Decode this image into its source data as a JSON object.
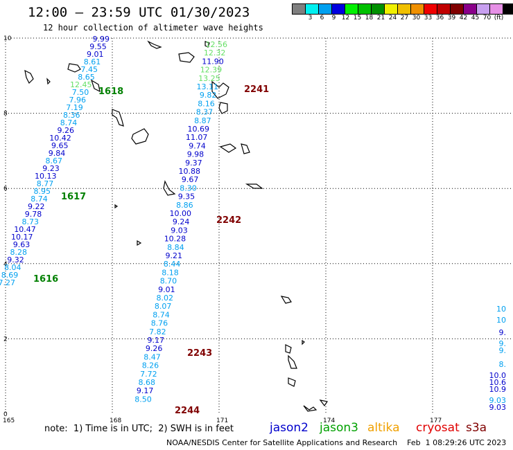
{
  "header": {
    "title": "12:00 — 23:59 UTC 01/30/2023",
    "subtitle": "12 hour collection of altimeter wave heights"
  },
  "legend": {
    "unit": "(ft)",
    "colors": [
      "#7f7f7f",
      "#00f0f0",
      "#00a0f0",
      "#0000e0",
      "#00f000",
      "#00c000",
      "#009000",
      "#f0f000",
      "#f0c000",
      "#f09000",
      "#f00000",
      "#c00000",
      "#800000",
      "#8a008a",
      "#c8a0f0",
      "#e690e6",
      "#000000"
    ],
    "labels": [
      "3",
      "6",
      "9",
      "12",
      "15",
      "18",
      "21",
      "24",
      "27",
      "30",
      "33",
      "36",
      "39",
      "42",
      "45",
      "70"
    ]
  },
  "axes": {
    "x_ticks": [
      "165",
      "168",
      "171",
      "174",
      "177"
    ],
    "y_ticks": [
      "0",
      "2",
      "4",
      "6",
      "8",
      "10"
    ]
  },
  "tracks": [
    {
      "values": [
        {
          "v": "9.99",
          "c": "#0000cc"
        },
        {
          "v": "9.55",
          "c": "#0000cc"
        },
        {
          "v": "9.01",
          "c": "#0000cc"
        },
        {
          "v": "8.61",
          "c": "#00a0f0"
        },
        {
          "v": "7.45",
          "c": "#00a0f0"
        },
        {
          "v": "8.65",
          "c": "#00a0f0"
        },
        {
          "v": "12.45",
          "c": "#66e066"
        },
        {
          "v": "7.50",
          "c": "#00a0f0"
        },
        {
          "v": "7.96",
          "c": "#00a0f0"
        },
        {
          "v": "7.19",
          "c": "#00a0f0"
        },
        {
          "v": "8.36",
          "c": "#00a0f0"
        },
        {
          "v": "8.74",
          "c": "#00a0f0"
        },
        {
          "v": "9.26",
          "c": "#0000cc"
        },
        {
          "v": "10.42",
          "c": "#0000cc"
        },
        {
          "v": "9.65",
          "c": "#0000cc"
        },
        {
          "v": "9.84",
          "c": "#0000cc"
        },
        {
          "v": "8.67",
          "c": "#00a0f0"
        },
        {
          "v": "9.23",
          "c": "#0000cc"
        },
        {
          "v": "10.13",
          "c": "#0000cc"
        },
        {
          "v": "8.77",
          "c": "#00a0f0"
        },
        {
          "v": "8.95",
          "c": "#00a0f0"
        },
        {
          "v": "8.74",
          "c": "#00a0f0"
        },
        {
          "v": "9.22",
          "c": "#0000cc"
        },
        {
          "v": "9.78",
          "c": "#0000cc"
        },
        {
          "v": "8.73",
          "c": "#00a0f0"
        },
        {
          "v": "10.47",
          "c": "#0000cc"
        },
        {
          "v": "10.17",
          "c": "#0000cc"
        },
        {
          "v": "9.63",
          "c": "#0000cc"
        },
        {
          "v": "8.28",
          "c": "#00a0f0"
        },
        {
          "v": "9.32",
          "c": "#0000cc"
        },
        {
          "v": "8.04",
          "c": "#00a0f0"
        },
        {
          "v": "8.69",
          "c": "#00a0f0"
        },
        {
          "v": "7.27",
          "c": "#00a0f0"
        }
      ],
      "times": [
        {
          "t": "1618",
          "c": "#008000"
        },
        {
          "t": "1617",
          "c": "#008000"
        },
        {
          "t": "1616",
          "c": "#008000"
        }
      ]
    },
    {
      "values": [
        {
          "v": "12.56",
          "c": "#66e066"
        },
        {
          "v": "12.32",
          "c": "#66e066"
        },
        {
          "v": "11.90",
          "c": "#0000cc"
        },
        {
          "v": "12.39",
          "c": "#66e066"
        },
        {
          "v": "13.25",
          "c": "#66e066"
        },
        {
          "v": "13.11",
          "c": "#00a0f0"
        },
        {
          "v": "9.82",
          "c": "#00a0f0"
        },
        {
          "v": "8.16",
          "c": "#00a0f0"
        },
        {
          "v": "8.37",
          "c": "#00a0f0"
        },
        {
          "v": "8.87",
          "c": "#00a0f0"
        },
        {
          "v": "10.69",
          "c": "#0000cc"
        },
        {
          "v": "11.07",
          "c": "#0000cc"
        },
        {
          "v": "9.74",
          "c": "#0000cc"
        },
        {
          "v": "9.98",
          "c": "#0000cc"
        },
        {
          "v": "9.37",
          "c": "#0000cc"
        },
        {
          "v": "10.88",
          "c": "#0000cc"
        },
        {
          "v": "9.67",
          "c": "#0000cc"
        },
        {
          "v": "8.30",
          "c": "#00a0f0"
        },
        {
          "v": "9.35",
          "c": "#0000cc"
        },
        {
          "v": "8.86",
          "c": "#00a0f0"
        },
        {
          "v": "10.00",
          "c": "#0000cc"
        },
        {
          "v": "9.24",
          "c": "#0000cc"
        },
        {
          "v": "9.03",
          "c": "#0000cc"
        },
        {
          "v": "10.28",
          "c": "#0000cc"
        },
        {
          "v": "8.84",
          "c": "#00a0f0"
        },
        {
          "v": "9.21",
          "c": "#0000cc"
        },
        {
          "v": "8.44",
          "c": "#00a0f0"
        },
        {
          "v": "8.18",
          "c": "#00a0f0"
        },
        {
          "v": "8.70",
          "c": "#00a0f0"
        },
        {
          "v": "9.01",
          "c": "#0000cc"
        },
        {
          "v": "8.02",
          "c": "#00a0f0"
        },
        {
          "v": "8.07",
          "c": "#00a0f0"
        },
        {
          "v": "8.74",
          "c": "#00a0f0"
        },
        {
          "v": "8.76",
          "c": "#00a0f0"
        },
        {
          "v": "7.82",
          "c": "#00a0f0"
        },
        {
          "v": "9.17",
          "c": "#0000cc"
        },
        {
          "v": "9.26",
          "c": "#0000cc"
        },
        {
          "v": "8.47",
          "c": "#00a0f0"
        },
        {
          "v": "8.26",
          "c": "#00a0f0"
        },
        {
          "v": "7.72",
          "c": "#00a0f0"
        },
        {
          "v": "8.68",
          "c": "#00a0f0"
        },
        {
          "v": "9.17",
          "c": "#0000cc"
        },
        {
          "v": "8.50",
          "c": "#00a0f0"
        }
      ],
      "times": [
        {
          "t": "2241",
          "c": "#800000"
        },
        {
          "t": "2242",
          "c": "#800000"
        },
        {
          "t": "2243",
          "c": "#800000"
        },
        {
          "t": "2244",
          "c": "#800000"
        }
      ]
    },
    {
      "values": [
        {
          "v": "10",
          "c": "#00a0f0"
        },
        {
          "v": "10",
          "c": "#00a0f0"
        },
        {
          "v": "9.",
          "c": "#0000cc"
        },
        {
          "v": "9.",
          "c": "#00a0f0"
        },
        {
          "v": "9.",
          "c": "#00a0f0"
        },
        {
          "v": "8.",
          "c": "#00a0f0"
        },
        {
          "v": "10.0",
          "c": "#0000cc"
        },
        {
          "v": "10.6",
          "c": "#0000cc"
        },
        {
          "v": "10.9",
          "c": "#0000cc"
        },
        {
          "v": "9.03",
          "c": "#00a0f0"
        },
        {
          "v": "9.03",
          "c": "#0000cc"
        }
      ],
      "times": []
    }
  ],
  "footer": {
    "note": "note:  1) Time is in UTC;  2) SWH is in feet",
    "satellites": [
      {
        "name": "jason2",
        "color": "#0000cc"
      },
      {
        "name": "jason3",
        "color": "#00a000"
      },
      {
        "name": "altika",
        "color": "#f0a000"
      },
      {
        "name": "cryosat",
        "color": "#e00000"
      },
      {
        "name": "s3a",
        "color": "#800000"
      }
    ],
    "credit": "NOAA/NESDIS Center for Satellite Applications and Research    Feb  1 08:29:26 UTC 2023"
  }
}
